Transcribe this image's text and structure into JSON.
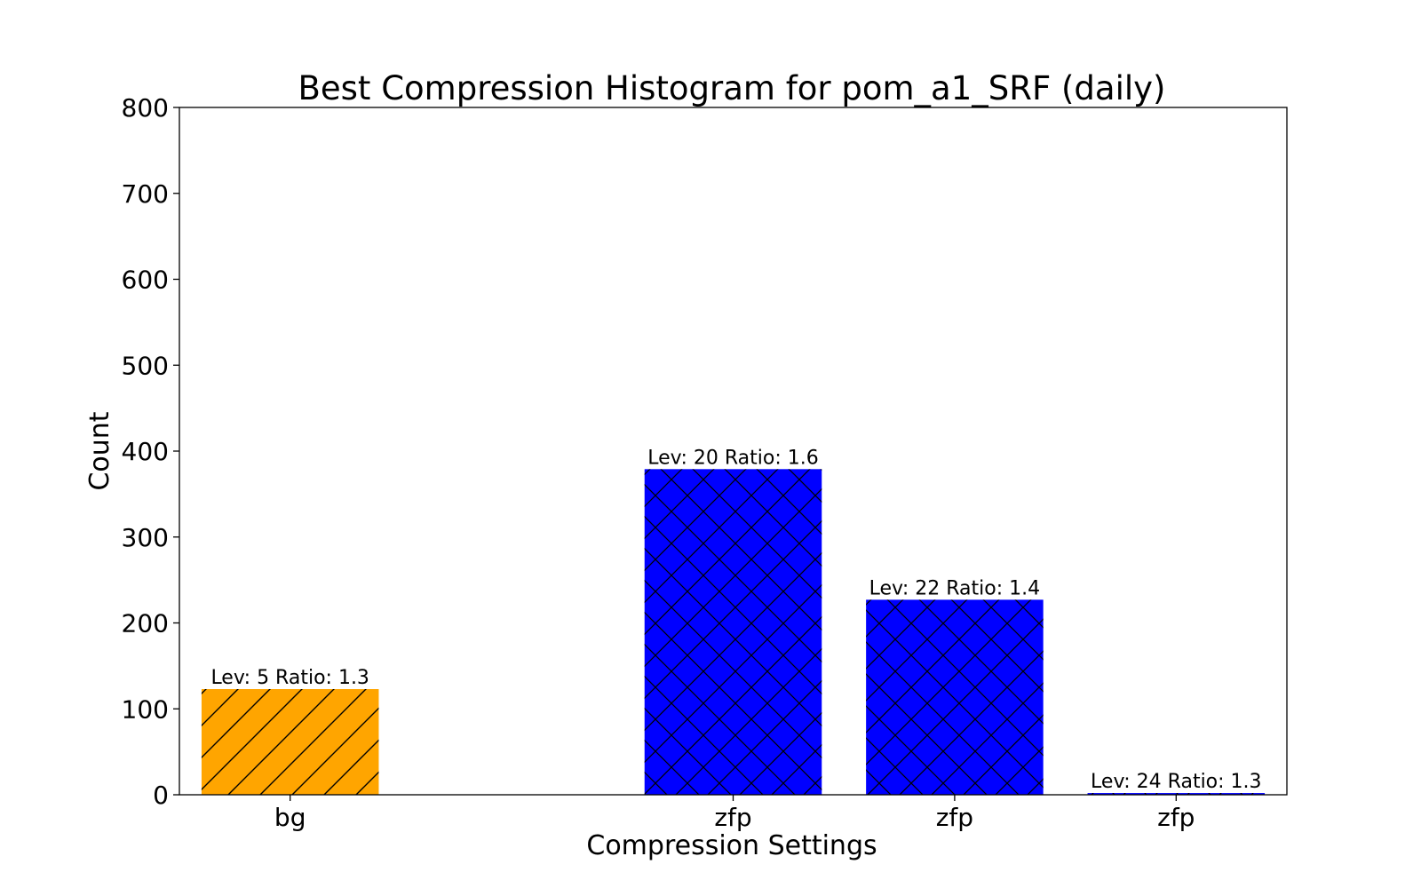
{
  "chart_data": {
    "type": "bar",
    "title": "Best Compression Histogram for pom_a1_SRF (daily)",
    "xlabel": "Compression Settings",
    "ylabel": "Count",
    "ylim": [
      0,
      800
    ],
    "yticks": [
      "0",
      "100",
      "200",
      "300",
      "400",
      "500",
      "600",
      "700",
      "800"
    ],
    "xlim": [
      -0.5,
      4.5
    ],
    "grid": false,
    "bars": [
      {
        "x": 0,
        "category": "bg",
        "value": 123,
        "label": "Lev: 5 Ratio: 1.3",
        "color": "#ffa500",
        "hatch": "diagonal"
      },
      {
        "x": 2,
        "category": "zfp",
        "value": 379,
        "label": "Lev: 20 Ratio: 1.6",
        "color": "#0000ff",
        "hatch": "crosshatch"
      },
      {
        "x": 3,
        "category": "zfp",
        "value": 227,
        "label": "Lev: 22 Ratio: 1.4",
        "color": "#0000ff",
        "hatch": "crosshatch"
      },
      {
        "x": 4,
        "category": "zfp",
        "value": 2,
        "label": "Lev: 24 Ratio: 1.3",
        "color": "#0000ff",
        "hatch": "crosshatch"
      }
    ]
  }
}
